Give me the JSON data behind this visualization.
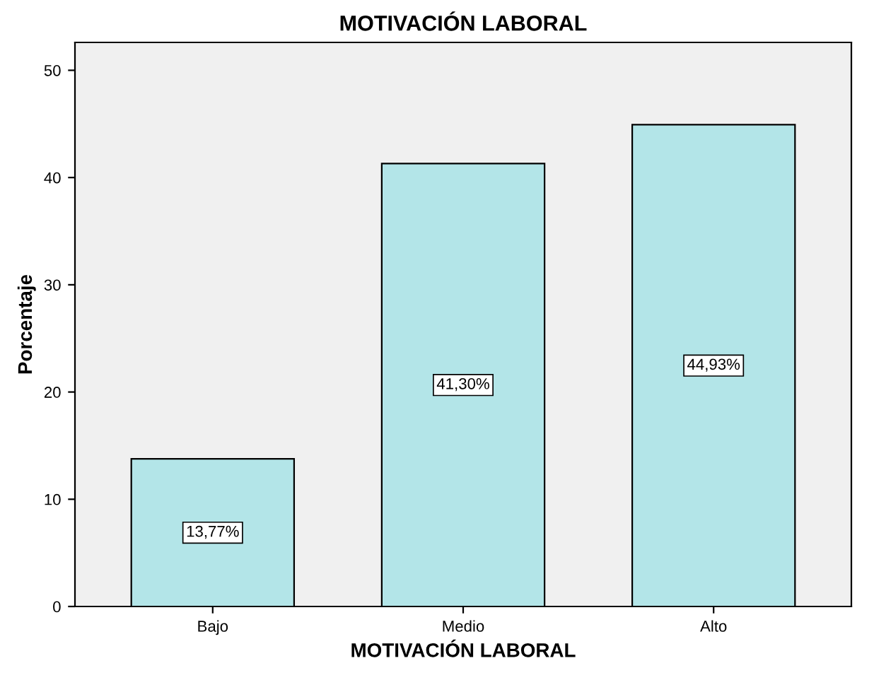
{
  "chart_data": {
    "type": "bar",
    "title": "MOTIVACIÓN LABORAL",
    "xlabel": "MOTIVACIÓN LABORAL",
    "ylabel": "Porcentaje",
    "categories": [
      "Bajo",
      "Medio",
      "Alto"
    ],
    "values": [
      13.77,
      41.3,
      44.93
    ],
    "value_labels": [
      "13,77%",
      "41,30%",
      "44,93%"
    ],
    "color": "#b3e5e8",
    "ylim": [
      0,
      52.6
    ],
    "yticks": [
      0,
      10,
      20,
      30,
      40,
      50
    ],
    "grid": false
  }
}
